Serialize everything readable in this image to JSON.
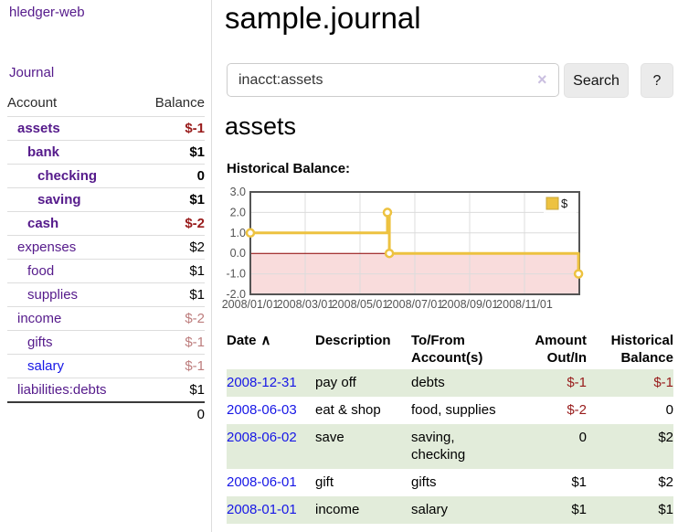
{
  "sidebar": {
    "brand": "hledger-web",
    "nav_journal": "Journal",
    "accounts_table": {
      "col_account": "Account",
      "col_balance": "Balance",
      "rows": [
        {
          "name": "assets",
          "balance": "$-1",
          "row_class": "lvl1 emph",
          "bal_class": "neg-strong"
        },
        {
          "name": "bank",
          "balance": "$1",
          "row_class": "lvl2 emph",
          "bal_class": ""
        },
        {
          "name": "checking",
          "balance": "0",
          "row_class": "lvl3 emph",
          "bal_class": ""
        },
        {
          "name": "saving",
          "balance": "$1",
          "row_class": "lvl3 emph",
          "bal_class": ""
        },
        {
          "name": "cash",
          "balance": "$-2",
          "row_class": "lvl2 emph",
          "bal_class": "neg-strong"
        },
        {
          "name": "expenses",
          "balance": "$2",
          "row_class": "lvl1",
          "bal_class": ""
        },
        {
          "name": "food",
          "balance": "$1",
          "row_class": "lvl2",
          "bal_class": ""
        },
        {
          "name": "supplies",
          "balance": "$1",
          "row_class": "lvl2",
          "bal_class": ""
        },
        {
          "name": "income",
          "balance": "$-2",
          "row_class": "lvl1",
          "bal_class": "neg-soft"
        },
        {
          "name": "gifts",
          "balance": "$-1",
          "row_class": "lvl2",
          "bal_class": "neg-soft"
        },
        {
          "name": "salary",
          "balance": "$-1",
          "row_class": "lvl2 alt-link",
          "bal_class": "neg-soft"
        },
        {
          "name": "liabilities:debts",
          "balance": "$1",
          "row_class": "lvl1",
          "bal_class": ""
        }
      ],
      "total": "0"
    }
  },
  "main": {
    "title": "sample.journal",
    "search": {
      "value": "inacct:assets",
      "clear_icon": "×",
      "button": "Search",
      "help": "?"
    },
    "account_heading": "assets",
    "section_label": "Historical Balance:"
  },
  "chart_data": {
    "type": "line",
    "title": "Historical Balance",
    "legend": [
      {
        "label": "$",
        "color": "#edc240"
      }
    ],
    "legend_position": "top-right",
    "grid": true,
    "ylim": [
      -2,
      3
    ],
    "yticks": [
      {
        "v": 3,
        "label": "3.0"
      },
      {
        "v": 2,
        "label": "2.0"
      },
      {
        "v": 1,
        "label": "1.0"
      },
      {
        "v": 0,
        "label": "0.0"
      },
      {
        "v": -1,
        "label": "-1.0"
      },
      {
        "v": -2,
        "label": "-2.0"
      }
    ],
    "xlim_months": [
      0,
      12
    ],
    "xticks": [
      {
        "m": 0,
        "label": "2008/01/01"
      },
      {
        "m": 2,
        "label": "2008/03/01"
      },
      {
        "m": 4,
        "label": "2008/05/01"
      },
      {
        "m": 6,
        "label": "2008/07/01"
      },
      {
        "m": 8,
        "label": "2008/09/01"
      },
      {
        "m": 10,
        "label": "2008/11/01"
      }
    ],
    "series": [
      {
        "name": "$",
        "color": "#edc240",
        "step_path": [
          [
            0,
            1
          ],
          [
            5,
            1
          ],
          [
            5,
            2
          ],
          [
            5.07,
            2
          ],
          [
            5.07,
            0
          ],
          [
            11.97,
            0
          ],
          [
            11.97,
            -1
          ]
        ],
        "points": [
          {
            "date": "2008-01-01",
            "m": 0,
            "value": 1
          },
          {
            "date": "2008-06-01",
            "m": 5,
            "value": 2
          },
          {
            "date": "2008-06-03",
            "m": 5.07,
            "value": 0
          },
          {
            "date": "2008-12-31",
            "m": 11.97,
            "value": -1
          }
        ]
      }
    ],
    "negative_region_fill": "#f9dcdc",
    "zero_line_color": "#8b0000",
    "border_color": "#545454",
    "gridline_color": "#dcdcdc",
    "tick_color": "#545454"
  },
  "register_table": {
    "headers": {
      "date": "Date",
      "sort_arrow": "∧",
      "description": "Description",
      "tofrom": "To/From Account(s)",
      "amount": "Amount Out/In",
      "balance": "Historical Balance"
    },
    "rows": [
      {
        "date": "2008-12-31",
        "description": "pay off",
        "accounts": "debts",
        "amount": "$-1",
        "balance": "$-1",
        "row_class": "shaded",
        "amount_class": "neg",
        "balance_class": "neg"
      },
      {
        "date": "2008-06-03",
        "description": "eat & shop",
        "accounts": "food, supplies",
        "amount": "$-2",
        "balance": "0",
        "row_class": "",
        "amount_class": "neg",
        "balance_class": ""
      },
      {
        "date": "2008-06-02",
        "description": "save",
        "accounts": "saving, checking",
        "amount": "0",
        "balance": "$2",
        "row_class": "shaded",
        "amount_class": "",
        "balance_class": ""
      },
      {
        "date": "2008-06-01",
        "description": "gift",
        "accounts": "gifts",
        "amount": "$1",
        "balance": "$2",
        "row_class": "",
        "amount_class": "",
        "balance_class": ""
      },
      {
        "date": "2008-01-01",
        "description": "income",
        "accounts": "salary",
        "amount": "$1",
        "balance": "$1",
        "row_class": "shaded",
        "amount_class": "",
        "balance_class": ""
      }
    ]
  }
}
